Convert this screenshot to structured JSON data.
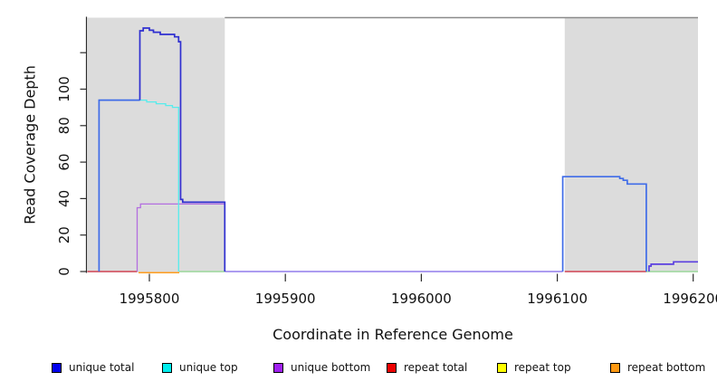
{
  "chart_data": {
    "type": "line",
    "title": "",
    "xlabel": "Coordinate in Reference Genome",
    "ylabel": "Read Coverage Depth",
    "xlim": [
      1995754.4,
      1996203.5
    ],
    "ylim": [
      0,
      139.2
    ],
    "grid": false,
    "background": "#ffffff",
    "shade_color": "#dcdcdc",
    "shaded_regions": [
      {
        "from": 1995754.4,
        "to": 1995855.5
      },
      {
        "from": 1996105.5,
        "to": 1996203.5
      }
    ],
    "x_ticks": [
      {
        "value": 1995800,
        "label": "1995800"
      },
      {
        "value": 1995900,
        "label": "1995900"
      },
      {
        "value": 1996000,
        "label": "1996000"
      },
      {
        "value": 1996100,
        "label": "1996100"
      },
      {
        "value": 1996200,
        "label": "1996200"
      }
    ],
    "y_ticks": [
      {
        "value": 0,
        "label": "0"
      },
      {
        "value": 20,
        "label": "20"
      },
      {
        "value": 40,
        "label": "40"
      },
      {
        "value": 60,
        "label": "60"
      },
      {
        "value": 80,
        "label": "80"
      },
      {
        "value": 100,
        "label": "100"
      },
      {
        "value": 120,
        "label": ""
      }
    ],
    "legend": [
      {
        "label": "unique total",
        "color": "#0000ee"
      },
      {
        "label": "unique top",
        "color": "#00eeee"
      },
      {
        "label": "unique bottom",
        "color": "#a020f0"
      },
      {
        "label": "repeat total",
        "color": "#ee0000"
      },
      {
        "label": "repeat top",
        "color": "#ffff00"
      },
      {
        "label": "repeat bottom",
        "color": "#ff9912"
      }
    ],
    "series": [
      {
        "name": "repeat-total-left-zero",
        "color": "#d42a3c",
        "width": 1.3,
        "points": [
          [
            1995754.4,
            0
          ],
          [
            1995791,
            0
          ]
        ]
      },
      {
        "name": "repeat-total-right-zero",
        "color": "#d42a3c",
        "width": 1.3,
        "points": [
          [
            1996105.5,
            0
          ],
          [
            1996165.5,
            0
          ]
        ]
      },
      {
        "name": "unique-zero-mid",
        "color": "#7a62e8",
        "width": 1.3,
        "points": [
          [
            1995855.5,
            0
          ],
          [
            1996104,
            0
          ]
        ]
      },
      {
        "name": "repeat-top-left-zero",
        "color": "#92dc92",
        "width": 1.3,
        "points": [
          [
            1995822,
            0
          ],
          [
            1995855.5,
            0
          ]
        ]
      },
      {
        "name": "repeat-top-right-zero",
        "color": "#92dc92",
        "width": 1.3,
        "points": [
          [
            1996165.5,
            0
          ],
          [
            1996203.5,
            0
          ]
        ]
      },
      {
        "name": "repeat-bottom",
        "color": "#ff9d1e",
        "width": 1.5,
        "points": [
          [
            1995792,
            -0.6
          ],
          [
            1995822,
            -0.6
          ]
        ]
      },
      {
        "name": "unique-bottom",
        "color": "#b36ee0",
        "width": 1.3,
        "points": [
          [
            1995791,
            0
          ],
          [
            1995791,
            35
          ],
          [
            1995793.5,
            35
          ],
          [
            1995793.5,
            37
          ],
          [
            1995855.5,
            37
          ],
          [
            1995855.5,
            0
          ]
        ]
      },
      {
        "name": "unique-top",
        "color": "#56ecec",
        "width": 1.3,
        "points": [
          [
            1995792.5,
            94
          ],
          [
            1995798,
            94
          ],
          [
            1995798,
            93
          ],
          [
            1995805,
            93
          ],
          [
            1995805,
            92
          ],
          [
            1995812,
            92
          ],
          [
            1995812,
            91
          ],
          [
            1995817,
            91
          ],
          [
            1995817,
            90
          ],
          [
            1995821.5,
            90
          ],
          [
            1995821.5,
            0
          ]
        ]
      },
      {
        "name": "unique-total-left",
        "color": "#3f6ce8",
        "width": 1.7,
        "points": [
          [
            1995763,
            0
          ],
          [
            1995763,
            94
          ],
          [
            1995793,
            94
          ]
        ]
      },
      {
        "name": "unique-total-peak",
        "color": "#2f2fd0",
        "width": 1.7,
        "points": [
          [
            1995793,
            94
          ],
          [
            1995793,
            132
          ],
          [
            1995795.5,
            132
          ],
          [
            1995795.5,
            133.5
          ],
          [
            1995800,
            133.5
          ],
          [
            1995800,
            132.3
          ],
          [
            1995803,
            132.3
          ],
          [
            1995803,
            131.2
          ],
          [
            1995808,
            131.2
          ],
          [
            1995808,
            130
          ],
          [
            1995818.5,
            130
          ],
          [
            1995818.5,
            128.7
          ],
          [
            1995821.5,
            128.7
          ],
          [
            1995821.5,
            126
          ],
          [
            1995823,
            126
          ],
          [
            1995823,
            39.5
          ],
          [
            1995824.5,
            39.5
          ],
          [
            1995824.5,
            38
          ],
          [
            1995855.5,
            38
          ],
          [
            1995855.5,
            0
          ]
        ]
      },
      {
        "name": "unique-total-right",
        "color": "#3f6ce8",
        "width": 1.7,
        "points": [
          [
            1996104,
            0
          ],
          [
            1996104,
            52
          ],
          [
            1996146,
            52
          ],
          [
            1996146,
            51
          ],
          [
            1996148.5,
            51
          ],
          [
            1996148.5,
            50
          ],
          [
            1996151.5,
            50
          ],
          [
            1996151.5,
            48
          ],
          [
            1996165.5,
            48
          ],
          [
            1996165.5,
            0
          ]
        ]
      },
      {
        "name": "unique-total-tail",
        "color": "#5b3fe0",
        "width": 1.7,
        "points": [
          [
            1996167.5,
            0
          ],
          [
            1996167.5,
            3
          ],
          [
            1996169,
            3
          ],
          [
            1996169,
            4
          ],
          [
            1996185.5,
            4
          ],
          [
            1996185.5,
            5.3
          ],
          [
            1996203.5,
            5.3
          ]
        ]
      }
    ]
  }
}
